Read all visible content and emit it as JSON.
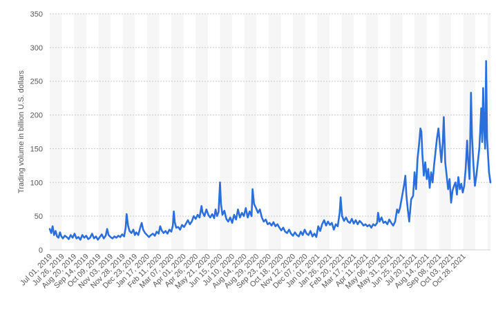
{
  "chart_data": {
    "type": "line",
    "title": "",
    "xlabel": "",
    "ylabel": "Trading volume in billion U.S. dollars",
    "ylim": [
      0,
      350
    ],
    "yticks": [
      0,
      50,
      100,
      150,
      200,
      250,
      300,
      350
    ],
    "grid": true,
    "legend": "none",
    "x_tick_labels": [
      "Jul 01, 2019",
      "Jul 26, 2019",
      "Aug 20, 2019",
      "Sep 14, 2019",
      "Oct 09, 2019",
      "Nov 03, 2019",
      "Nov 28, 2019",
      "Dec 23, 2019",
      "Jan 17, 2020",
      "Feb 11, 2020",
      "Mar 07, 2020",
      "Apr 01, 2020",
      "Apr 26, 2020",
      "May 21, 2020",
      "Jun 15, 2020",
      "Jul 10, 2020",
      "Aug 04, 2020",
      "Aug 29, 2020",
      "Sep 23, 2020",
      "Oct 18, 2020",
      "Nov 12, 2020",
      "Dec 07, 2020",
      "Jan 01, 2021",
      "Jan 26, 2021",
      "Feb 20, 2021",
      "Mar 17, 2021",
      "Apr 11, 2021",
      "May 06, 2021",
      "May 31, 2021",
      "Jun 25, 2021",
      "Jul 20, 2021",
      "Aug 14, 2021",
      "Sep 08, 2021",
      "Oct 03, 2021",
      "Oct 28, 2021"
    ],
    "series": [
      {
        "name": "",
        "color": "#2a6fdb",
        "points": [
          [
            "2019-07-01",
            31
          ],
          [
            "2019-07-04",
            25
          ],
          [
            "2019-07-07",
            35
          ],
          [
            "2019-07-10",
            22
          ],
          [
            "2019-07-13",
            28
          ],
          [
            "2019-07-16",
            20
          ],
          [
            "2019-07-19",
            18
          ],
          [
            "2019-07-22",
            26
          ],
          [
            "2019-07-25",
            20
          ],
          [
            "2019-07-28",
            17
          ],
          [
            "2019-08-01",
            21
          ],
          [
            "2019-08-05",
            19
          ],
          [
            "2019-08-09",
            16
          ],
          [
            "2019-08-13",
            22
          ],
          [
            "2019-08-17",
            18
          ],
          [
            "2019-08-21",
            24
          ],
          [
            "2019-08-25",
            17
          ],
          [
            "2019-08-29",
            19
          ],
          [
            "2019-09-02",
            15
          ],
          [
            "2019-09-06",
            22
          ],
          [
            "2019-09-10",
            18
          ],
          [
            "2019-09-14",
            21
          ],
          [
            "2019-09-18",
            16
          ],
          [
            "2019-09-22",
            18
          ],
          [
            "2019-09-26",
            24
          ],
          [
            "2019-09-30",
            17
          ],
          [
            "2019-10-04",
            20
          ],
          [
            "2019-10-08",
            15
          ],
          [
            "2019-10-12",
            19
          ],
          [
            "2019-10-16",
            23
          ],
          [
            "2019-10-20",
            17
          ],
          [
            "2019-10-24",
            21
          ],
          [
            "2019-10-27",
            31
          ],
          [
            "2019-10-30",
            22
          ],
          [
            "2019-11-03",
            19
          ],
          [
            "2019-11-07",
            17
          ],
          [
            "2019-11-11",
            20
          ],
          [
            "2019-11-15",
            18
          ],
          [
            "2019-11-19",
            21
          ],
          [
            "2019-11-23",
            19
          ],
          [
            "2019-11-27",
            23
          ],
          [
            "2019-12-01",
            20
          ],
          [
            "2019-12-04",
            33
          ],
          [
            "2019-12-06",
            53
          ],
          [
            "2019-12-09",
            36
          ],
          [
            "2019-12-12",
            28
          ],
          [
            "2019-12-16",
            25
          ],
          [
            "2019-12-20",
            30
          ],
          [
            "2019-12-23",
            22
          ],
          [
            "2019-12-26",
            26
          ],
          [
            "2019-12-30",
            22
          ],
          [
            "2020-01-03",
            33
          ],
          [
            "2020-01-06",
            40
          ],
          [
            "2020-01-09",
            30
          ],
          [
            "2020-01-13",
            25
          ],
          [
            "2020-01-17",
            22
          ],
          [
            "2020-01-21",
            19
          ],
          [
            "2020-01-25",
            22
          ],
          [
            "2020-01-29",
            24
          ],
          [
            "2020-02-02",
            21
          ],
          [
            "2020-02-06",
            27
          ],
          [
            "2020-02-10",
            24
          ],
          [
            "2020-02-13",
            35
          ],
          [
            "2020-02-16",
            29
          ],
          [
            "2020-02-20",
            25
          ],
          [
            "2020-02-24",
            28
          ],
          [
            "2020-02-28",
            24
          ],
          [
            "2020-03-03",
            30
          ],
          [
            "2020-03-07",
            27
          ],
          [
            "2020-03-10",
            36
          ],
          [
            "2020-03-12",
            57
          ],
          [
            "2020-03-14",
            41
          ],
          [
            "2020-03-17",
            33
          ],
          [
            "2020-03-21",
            34
          ],
          [
            "2020-03-25",
            30
          ],
          [
            "2020-03-29",
            37
          ],
          [
            "2020-04-02",
            34
          ],
          [
            "2020-04-06",
            39
          ],
          [
            "2020-04-10",
            44
          ],
          [
            "2020-04-14",
            38
          ],
          [
            "2020-04-18",
            42
          ],
          [
            "2020-04-22",
            50
          ],
          [
            "2020-04-26",
            46
          ],
          [
            "2020-04-30",
            52
          ],
          [
            "2020-05-04",
            48
          ],
          [
            "2020-05-08",
            65
          ],
          [
            "2020-05-10",
            56
          ],
          [
            "2020-05-14",
            50
          ],
          [
            "2020-05-18",
            60
          ],
          [
            "2020-05-22",
            52
          ],
          [
            "2020-05-26",
            48
          ],
          [
            "2020-05-30",
            53
          ],
          [
            "2020-06-03",
            47
          ],
          [
            "2020-06-06",
            60
          ],
          [
            "2020-06-09",
            50
          ],
          [
            "2020-06-12",
            56
          ],
          [
            "2020-06-15",
            100
          ],
          [
            "2020-06-17",
            68
          ],
          [
            "2020-06-20",
            52
          ],
          [
            "2020-06-24",
            58
          ],
          [
            "2020-06-28",
            46
          ],
          [
            "2020-07-02",
            42
          ],
          [
            "2020-07-06",
            48
          ],
          [
            "2020-07-10",
            40
          ],
          [
            "2020-07-14",
            52
          ],
          [
            "2020-07-18",
            45
          ],
          [
            "2020-07-22",
            60
          ],
          [
            "2020-07-26",
            48
          ],
          [
            "2020-07-30",
            55
          ],
          [
            "2020-08-03",
            50
          ],
          [
            "2020-08-07",
            62
          ],
          [
            "2020-08-11",
            48
          ],
          [
            "2020-08-15",
            57
          ],
          [
            "2020-08-19",
            50
          ],
          [
            "2020-08-21",
            90
          ],
          [
            "2020-08-24",
            68
          ],
          [
            "2020-08-28",
            62
          ],
          [
            "2020-09-01",
            55
          ],
          [
            "2020-09-05",
            60
          ],
          [
            "2020-09-09",
            48
          ],
          [
            "2020-09-13",
            42
          ],
          [
            "2020-09-17",
            45
          ],
          [
            "2020-09-21",
            38
          ],
          [
            "2020-09-25",
            40
          ],
          [
            "2020-09-29",
            36
          ],
          [
            "2020-10-03",
            41
          ],
          [
            "2020-10-07",
            35
          ],
          [
            "2020-10-11",
            38
          ],
          [
            "2020-10-15",
            33
          ],
          [
            "2020-10-19",
            29
          ],
          [
            "2020-10-23",
            33
          ],
          [
            "2020-10-27",
            27
          ],
          [
            "2020-10-31",
            25
          ],
          [
            "2020-11-04",
            30
          ],
          [
            "2020-11-08",
            24
          ],
          [
            "2020-11-12",
            21
          ],
          [
            "2020-11-16",
            26
          ],
          [
            "2020-11-20",
            22
          ],
          [
            "2020-11-24",
            20
          ],
          [
            "2020-11-28",
            27
          ],
          [
            "2020-12-02",
            22
          ],
          [
            "2020-12-06",
            30
          ],
          [
            "2020-12-10",
            24
          ],
          [
            "2020-12-14",
            22
          ],
          [
            "2020-12-18",
            28
          ],
          [
            "2020-12-22",
            20
          ],
          [
            "2020-12-26",
            24
          ],
          [
            "2020-12-30",
            19
          ],
          [
            "2021-01-03",
            35
          ],
          [
            "2021-01-07",
            28
          ],
          [
            "2021-01-11",
            38
          ],
          [
            "2021-01-15",
            44
          ],
          [
            "2021-01-19",
            36
          ],
          [
            "2021-01-23",
            42
          ],
          [
            "2021-01-27",
            37
          ],
          [
            "2021-01-31",
            40
          ],
          [
            "2021-02-04",
            30
          ],
          [
            "2021-02-08",
            38
          ],
          [
            "2021-02-12",
            35
          ],
          [
            "2021-02-16",
            55
          ],
          [
            "2021-02-18",
            78
          ],
          [
            "2021-02-21",
            50
          ],
          [
            "2021-02-25",
            43
          ],
          [
            "2021-03-01",
            48
          ],
          [
            "2021-03-05",
            42
          ],
          [
            "2021-03-09",
            40
          ],
          [
            "2021-03-13",
            46
          ],
          [
            "2021-03-17",
            39
          ],
          [
            "2021-03-21",
            44
          ],
          [
            "2021-03-25",
            38
          ],
          [
            "2021-03-29",
            43
          ],
          [
            "2021-04-02",
            40
          ],
          [
            "2021-04-06",
            36
          ],
          [
            "2021-04-10",
            38
          ],
          [
            "2021-04-14",
            35
          ],
          [
            "2021-04-18",
            37
          ],
          [
            "2021-04-22",
            33
          ],
          [
            "2021-04-26",
            38
          ],
          [
            "2021-04-30",
            36
          ],
          [
            "2021-05-04",
            40
          ],
          [
            "2021-05-06",
            55
          ],
          [
            "2021-05-09",
            42
          ],
          [
            "2021-05-13",
            48
          ],
          [
            "2021-05-17",
            40
          ],
          [
            "2021-05-21",
            42
          ],
          [
            "2021-05-25",
            38
          ],
          [
            "2021-05-29",
            45
          ],
          [
            "2021-06-02",
            40
          ],
          [
            "2021-06-06",
            36
          ],
          [
            "2021-06-10",
            42
          ],
          [
            "2021-06-14",
            60
          ],
          [
            "2021-06-17",
            55
          ],
          [
            "2021-06-20",
            62
          ],
          [
            "2021-06-24",
            78
          ],
          [
            "2021-06-28",
            95
          ],
          [
            "2021-07-01",
            110
          ],
          [
            "2021-07-03",
            82
          ],
          [
            "2021-07-06",
            60
          ],
          [
            "2021-07-09",
            42
          ],
          [
            "2021-07-13",
            75
          ],
          [
            "2021-07-17",
            80
          ],
          [
            "2021-07-20",
            115
          ],
          [
            "2021-07-23",
            90
          ],
          [
            "2021-07-26",
            135
          ],
          [
            "2021-07-29",
            155
          ],
          [
            "2021-08-01",
            180
          ],
          [
            "2021-08-03",
            175
          ],
          [
            "2021-08-05",
            142
          ],
          [
            "2021-08-08",
            110
          ],
          [
            "2021-08-11",
            130
          ],
          [
            "2021-08-14",
            105
          ],
          [
            "2021-08-17",
            120
          ],
          [
            "2021-08-20",
            92
          ],
          [
            "2021-08-23",
            115
          ],
          [
            "2021-08-26",
            100
          ],
          [
            "2021-08-29",
            125
          ],
          [
            "2021-09-01",
            145
          ],
          [
            "2021-09-04",
            165
          ],
          [
            "2021-09-07",
            180
          ],
          [
            "2021-09-10",
            155
          ],
          [
            "2021-09-13",
            130
          ],
          [
            "2021-09-16",
            160
          ],
          [
            "2021-09-18",
            197
          ],
          [
            "2021-09-21",
            130
          ],
          [
            "2021-09-24",
            110
          ],
          [
            "2021-09-27",
            90
          ],
          [
            "2021-09-30",
            105
          ],
          [
            "2021-10-03",
            70
          ],
          [
            "2021-10-06",
            88
          ],
          [
            "2021-10-09",
            95
          ],
          [
            "2021-10-12",
            100
          ],
          [
            "2021-10-15",
            82
          ],
          [
            "2021-10-18",
            108
          ],
          [
            "2021-10-21",
            90
          ],
          [
            "2021-10-24",
            98
          ],
          [
            "2021-10-27",
            85
          ],
          [
            "2021-10-30",
            95
          ],
          [
            "2021-11-02",
            120
          ],
          [
            "2021-11-05",
            162
          ],
          [
            "2021-11-07",
            133
          ],
          [
            "2021-11-10",
            105
          ],
          [
            "2021-11-13",
            233
          ],
          [
            "2021-11-15",
            170
          ],
          [
            "2021-11-18",
            125
          ],
          [
            "2021-11-21",
            95
          ],
          [
            "2021-11-24",
            110
          ],
          [
            "2021-11-27",
            130
          ],
          [
            "2021-11-30",
            150
          ],
          [
            "2021-12-02",
            178
          ],
          [
            "2021-12-04",
            210
          ],
          [
            "2021-12-06",
            160
          ],
          [
            "2021-12-08",
            240
          ],
          [
            "2021-12-10",
            180
          ],
          [
            "2021-12-12",
            150
          ],
          [
            "2021-12-14",
            280
          ],
          [
            "2021-12-16",
            165
          ],
          [
            "2021-12-18",
            140
          ],
          [
            "2021-12-20",
            115
          ],
          [
            "2021-12-23",
            100
          ]
        ]
      }
    ]
  }
}
